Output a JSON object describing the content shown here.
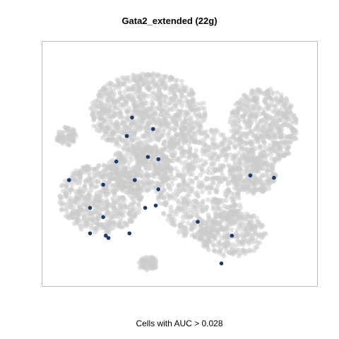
{
  "chart_data": {
    "type": "scatter",
    "title": "Gata2_extended (22g)",
    "xlabel": "Cells with AUC > 0.028",
    "ylabel": "",
    "xlim": [
      0,
      100
    ],
    "ylim": [
      0,
      100
    ],
    "grid": false,
    "legend": "none",
    "colors": {
      "background_cells": "#cccccc",
      "highlight_cells": "#1b3a6b",
      "frame": "#bdbdbd"
    },
    "clusters": [
      {
        "cx": 38,
        "cy": 72,
        "rx": 22,
        "ry": 17,
        "n": 900
      },
      {
        "cx": 20,
        "cy": 35,
        "rx": 16,
        "ry": 15,
        "n": 600
      },
      {
        "cx": 58,
        "cy": 42,
        "rx": 17,
        "ry": 25,
        "n": 700
      },
      {
        "cx": 70,
        "cy": 20,
        "rx": 13,
        "ry": 10,
        "n": 300
      },
      {
        "cx": 82,
        "cy": 66,
        "rx": 13,
        "ry": 17,
        "n": 550
      },
      {
        "cx": 35,
        "cy": 48,
        "rx": 12,
        "ry": 10,
        "n": 350
      },
      {
        "cx": 7,
        "cy": 62,
        "rx": 4,
        "ry": 4,
        "n": 70
      },
      {
        "cx": 38,
        "cy": 7,
        "rx": 4,
        "ry": 3,
        "n": 60
      },
      {
        "cx": 78,
        "cy": 45,
        "rx": 9,
        "ry": 8,
        "n": 200
      }
    ],
    "highlighted": [
      {
        "x": 32,
        "y": 70
      },
      {
        "x": 30,
        "y": 62
      },
      {
        "x": 40,
        "y": 65
      },
      {
        "x": 38,
        "y": 53
      },
      {
        "x": 42,
        "y": 52
      },
      {
        "x": 26,
        "y": 51
      },
      {
        "x": 33,
        "y": 43
      },
      {
        "x": 42,
        "y": 39
      },
      {
        "x": 8,
        "y": 43
      },
      {
        "x": 16,
        "y": 31
      },
      {
        "x": 21,
        "y": 27
      },
      {
        "x": 16,
        "y": 20
      },
      {
        "x": 22,
        "y": 19
      },
      {
        "x": 23,
        "y": 18
      },
      {
        "x": 31,
        "y": 20
      },
      {
        "x": 37,
        "y": 31
      },
      {
        "x": 41,
        "y": 32
      },
      {
        "x": 57,
        "y": 25
      },
      {
        "x": 70,
        "y": 19
      },
      {
        "x": 66,
        "y": 7
      },
      {
        "x": 77,
        "y": 45
      },
      {
        "x": 86,
        "y": 44
      },
      {
        "x": 21,
        "y": 41
      }
    ]
  }
}
